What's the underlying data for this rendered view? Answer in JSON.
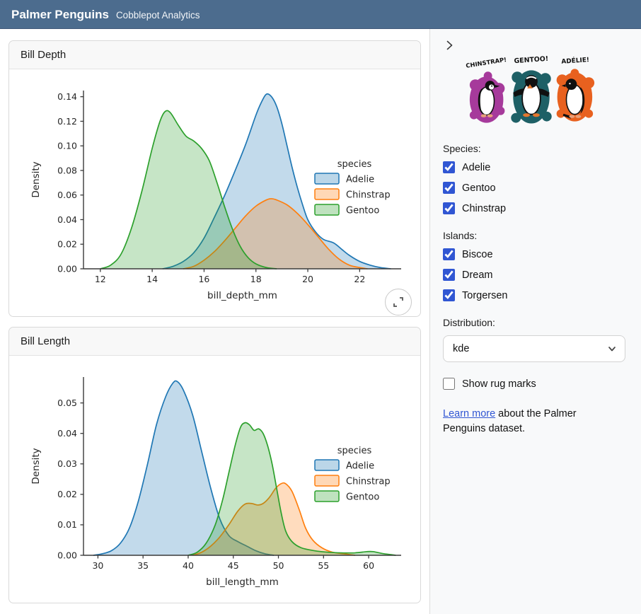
{
  "app": {
    "title": "Palmer Penguins",
    "subtitle": "Cobblepot Analytics",
    "header_color": "#4c6c8e"
  },
  "cards": [
    {
      "title": "Bill Depth"
    },
    {
      "title": "Bill Length"
    }
  ],
  "sidebar": {
    "collapse_icon": "chevron-right",
    "artwork": {
      "labels": [
        "CHINSTRAP!",
        "GENTOO!",
        "ADÉLIE!"
      ],
      "colors": {
        "chinstrap": "#a63a9b",
        "gentoo": "#1e6066",
        "adelie": "#e8611f"
      }
    },
    "species": {
      "label": "Species:",
      "options": [
        {
          "label": "Adelie",
          "checked": true
        },
        {
          "label": "Gentoo",
          "checked": true
        },
        {
          "label": "Chinstrap",
          "checked": true
        }
      ]
    },
    "islands": {
      "label": "Islands:",
      "options": [
        {
          "label": "Biscoe",
          "checked": true
        },
        {
          "label": "Dream",
          "checked": true
        },
        {
          "label": "Torgersen",
          "checked": true
        }
      ]
    },
    "distribution": {
      "label": "Distribution:",
      "value": "kde"
    },
    "rug": {
      "label": "Show rug marks",
      "checked": false
    },
    "about": {
      "link_text": "Learn more",
      "rest_text": " about the Palmer Penguins dataset."
    },
    "accent_color": "#3056d3"
  },
  "chart_data": [
    {
      "type": "area",
      "title": "Bill Depth",
      "xlabel": "bill_depth_mm",
      "ylabel": "Density",
      "xlim": [
        11.35,
        23.6
      ],
      "ylim": [
        0,
        0.145
      ],
      "xticks": [
        12,
        14,
        16,
        18,
        20,
        22
      ],
      "ytick_values": [
        0,
        0.02,
        0.04,
        0.06,
        0.08,
        0.1,
        0.12,
        0.14
      ],
      "ytick_labels": [
        "0.00",
        "0.02",
        "0.04",
        "0.06",
        "0.08",
        "0.10",
        "0.12",
        "0.14"
      ],
      "legend_title": "species",
      "series": [
        {
          "name": "Adelie",
          "color": "#1f77b4",
          "points": [
            [
              14.4,
              0.0
            ],
            [
              14.8,
              0.002
            ],
            [
              15.2,
              0.006
            ],
            [
              15.6,
              0.013
            ],
            [
              16.0,
              0.025
            ],
            [
              16.4,
              0.042
            ],
            [
              16.8,
              0.06
            ],
            [
              17.2,
              0.08
            ],
            [
              17.6,
              0.101
            ],
            [
              18.0,
              0.125
            ],
            [
              18.2,
              0.135
            ],
            [
              18.4,
              0.142
            ],
            [
              18.6,
              0.14
            ],
            [
              18.8,
              0.132
            ],
            [
              19.0,
              0.118
            ],
            [
              19.2,
              0.1
            ],
            [
              19.4,
              0.082
            ],
            [
              19.6,
              0.066
            ],
            [
              19.8,
              0.052
            ],
            [
              20.0,
              0.04
            ],
            [
              20.3,
              0.03
            ],
            [
              20.6,
              0.024
            ],
            [
              21.0,
              0.021
            ],
            [
              21.3,
              0.016
            ],
            [
              21.6,
              0.011
            ],
            [
              22.0,
              0.006
            ],
            [
              22.4,
              0.003
            ],
            [
              22.8,
              0.001
            ],
            [
              23.2,
              0.0
            ]
          ]
        },
        {
          "name": "Chinstrap",
          "color": "#ff7f0e",
          "points": [
            [
              15.2,
              0.0
            ],
            [
              15.6,
              0.002
            ],
            [
              16.0,
              0.007
            ],
            [
              16.4,
              0.014
            ],
            [
              16.8,
              0.023
            ],
            [
              17.2,
              0.033
            ],
            [
              17.6,
              0.043
            ],
            [
              18.0,
              0.051
            ],
            [
              18.4,
              0.056
            ],
            [
              18.6,
              0.057
            ],
            [
              18.8,
              0.056
            ],
            [
              19.2,
              0.052
            ],
            [
              19.6,
              0.045
            ],
            [
              20.0,
              0.036
            ],
            [
              20.4,
              0.026
            ],
            [
              20.8,
              0.016
            ],
            [
              21.2,
              0.008
            ],
            [
              21.6,
              0.003
            ],
            [
              22.0,
              0.001
            ],
            [
              22.3,
              0.0
            ]
          ]
        },
        {
          "name": "Gentoo",
          "color": "#2ca02c",
          "points": [
            [
              12.0,
              0.0
            ],
            [
              12.4,
              0.003
            ],
            [
              12.8,
              0.012
            ],
            [
              13.2,
              0.033
            ],
            [
              13.6,
              0.063
            ],
            [
              14.0,
              0.098
            ],
            [
              14.3,
              0.12
            ],
            [
              14.5,
              0.128
            ],
            [
              14.7,
              0.127
            ],
            [
              15.0,
              0.117
            ],
            [
              15.3,
              0.108
            ],
            [
              15.6,
              0.104
            ],
            [
              15.9,
              0.098
            ],
            [
              16.2,
              0.088
            ],
            [
              16.5,
              0.07
            ],
            [
              16.8,
              0.05
            ],
            [
              17.1,
              0.032
            ],
            [
              17.4,
              0.018
            ],
            [
              17.7,
              0.009
            ],
            [
              18.0,
              0.004
            ],
            [
              18.4,
              0.001
            ],
            [
              18.8,
              0.0
            ]
          ]
        }
      ]
    },
    {
      "type": "area",
      "title": "Bill Length",
      "xlabel": "bill_length_mm",
      "ylabel": "Density",
      "xlim": [
        28.4,
        63.6
      ],
      "ylim": [
        0,
        0.0585
      ],
      "xticks": [
        30,
        35,
        40,
        45,
        50,
        55,
        60
      ],
      "ytick_values": [
        0,
        0.01,
        0.02,
        0.03,
        0.04,
        0.05
      ],
      "ytick_labels": [
        "0.00",
        "0.01",
        "0.02",
        "0.03",
        "0.04",
        "0.05"
      ],
      "legend_title": "species",
      "series": [
        {
          "name": "Adelie",
          "color": "#1f77b4",
          "points": [
            [
              29.5,
              0.0
            ],
            [
              30.5,
              0.0005
            ],
            [
              31.5,
              0.0015
            ],
            [
              32.5,
              0.004
            ],
            [
              33.5,
              0.009
            ],
            [
              34.5,
              0.018
            ],
            [
              35.5,
              0.03
            ],
            [
              36.5,
              0.043
            ],
            [
              37.5,
              0.052
            ],
            [
              38.3,
              0.0565
            ],
            [
              38.8,
              0.057
            ],
            [
              39.5,
              0.054
            ],
            [
              40.5,
              0.046
            ],
            [
              41.5,
              0.034
            ],
            [
              42.5,
              0.022
            ],
            [
              43.5,
              0.012
            ],
            [
              44.5,
              0.0065
            ],
            [
              45.5,
              0.0045
            ],
            [
              46.5,
              0.003
            ],
            [
              47.5,
              0.0015
            ],
            [
              48.5,
              0.0005
            ],
            [
              49.5,
              0.0
            ]
          ]
        },
        {
          "name": "Chinstrap",
          "color": "#ff7f0e",
          "points": [
            [
              40.5,
              0.0
            ],
            [
              41.5,
              0.001
            ],
            [
              42.5,
              0.003
            ],
            [
              43.5,
              0.006
            ],
            [
              44.5,
              0.01
            ],
            [
              45.5,
              0.0145
            ],
            [
              46.3,
              0.0168
            ],
            [
              47.0,
              0.017
            ],
            [
              47.7,
              0.0165
            ],
            [
              48.3,
              0.017
            ],
            [
              49.0,
              0.019
            ],
            [
              49.7,
              0.022
            ],
            [
              50.3,
              0.0235
            ],
            [
              50.8,
              0.0235
            ],
            [
              51.5,
              0.021
            ],
            [
              52.3,
              0.015
            ],
            [
              53.0,
              0.009
            ],
            [
              53.8,
              0.005
            ],
            [
              54.8,
              0.0025
            ],
            [
              56.0,
              0.001
            ],
            [
              57.5,
              0.0004
            ],
            [
              58.5,
              0.0
            ]
          ]
        },
        {
          "name": "Gentoo",
          "color": "#2ca02c",
          "points": [
            [
              40.0,
              0.0
            ],
            [
              41.0,
              0.001
            ],
            [
              42.0,
              0.004
            ],
            [
              43.0,
              0.01
            ],
            [
              43.8,
              0.018
            ],
            [
              44.5,
              0.027
            ],
            [
              45.2,
              0.036
            ],
            [
              45.8,
              0.042
            ],
            [
              46.3,
              0.0435
            ],
            [
              46.8,
              0.0428
            ],
            [
              47.3,
              0.041
            ],
            [
              47.8,
              0.0415
            ],
            [
              48.3,
              0.04
            ],
            [
              48.8,
              0.036
            ],
            [
              49.3,
              0.03
            ],
            [
              49.8,
              0.022
            ],
            [
              50.3,
              0.014
            ],
            [
              50.8,
              0.008
            ],
            [
              51.5,
              0.0045
            ],
            [
              52.5,
              0.0025
            ],
            [
              54.0,
              0.0015
            ],
            [
              55.5,
              0.001
            ],
            [
              57.0,
              0.0008
            ],
            [
              58.5,
              0.0008
            ],
            [
              59.8,
              0.0012
            ],
            [
              60.5,
              0.0012
            ],
            [
              61.5,
              0.0006
            ],
            [
              62.5,
              0.0002
            ],
            [
              63.0,
              0.0
            ]
          ]
        }
      ]
    }
  ]
}
